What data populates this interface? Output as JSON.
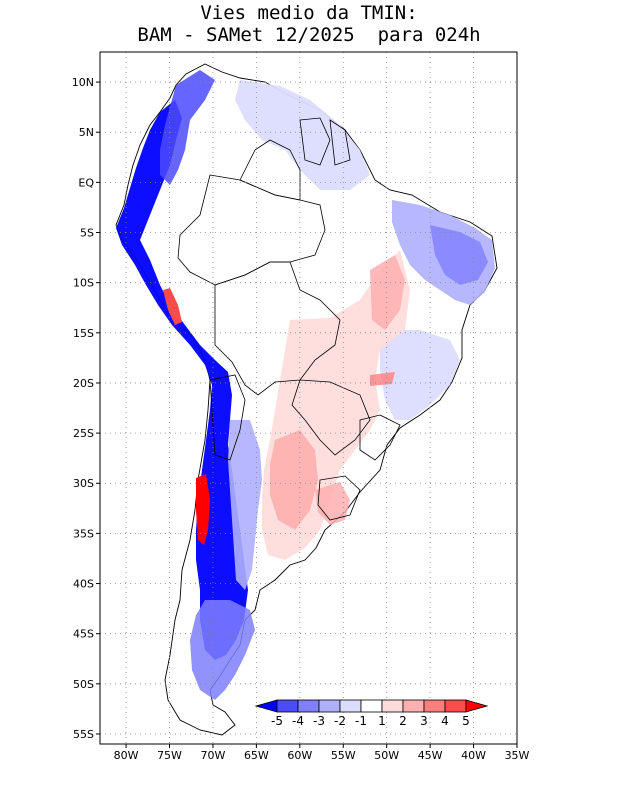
{
  "title": {
    "line1": "Vies medio da TMIN:",
    "line2": "BAM - SAMet 12/2025  para 024h"
  },
  "map": {
    "region": "South America",
    "lon_range": [
      -83,
      -35
    ],
    "lat_range": [
      -56,
      13
    ],
    "grid": "dotted",
    "lat_ticks": [
      {
        "value": 10,
        "label": "10N"
      },
      {
        "value": 5,
        "label": "5N"
      },
      {
        "value": 0,
        "label": "EQ"
      },
      {
        "value": -5,
        "label": "5S"
      },
      {
        "value": -10,
        "label": "10S"
      },
      {
        "value": -15,
        "label": "15S"
      },
      {
        "value": -20,
        "label": "20S"
      },
      {
        "value": -25,
        "label": "25S"
      },
      {
        "value": -30,
        "label": "30S"
      },
      {
        "value": -35,
        "label": "35S"
      },
      {
        "value": -40,
        "label": "40S"
      },
      {
        "value": -45,
        "label": "45S"
      },
      {
        "value": -50,
        "label": "50S"
      },
      {
        "value": -55,
        "label": "55S"
      }
    ],
    "lon_ticks": [
      {
        "value": -80,
        "label": "80W"
      },
      {
        "value": -75,
        "label": "75W"
      },
      {
        "value": -70,
        "label": "70W"
      },
      {
        "value": -65,
        "label": "65W"
      },
      {
        "value": -60,
        "label": "60W"
      },
      {
        "value": -55,
        "label": "55W"
      },
      {
        "value": -50,
        "label": "50W"
      },
      {
        "value": -45,
        "label": "45W"
      },
      {
        "value": -40,
        "label": "40W"
      },
      {
        "value": -35,
        "label": "35W"
      }
    ]
  },
  "colorbar": {
    "labels": [
      "-5",
      "-4",
      "-3",
      "-2",
      "-1",
      "1",
      "2",
      "3",
      "4",
      "5"
    ],
    "colors": [
      "#0000ff",
      "#4b4bff",
      "#7f7fff",
      "#afafff",
      "#dcdcff",
      "#ffffff",
      "#ffdcdc",
      "#ffafaf",
      "#ff7f7f",
      "#ff4b4b",
      "#ff0000"
    ]
  }
}
